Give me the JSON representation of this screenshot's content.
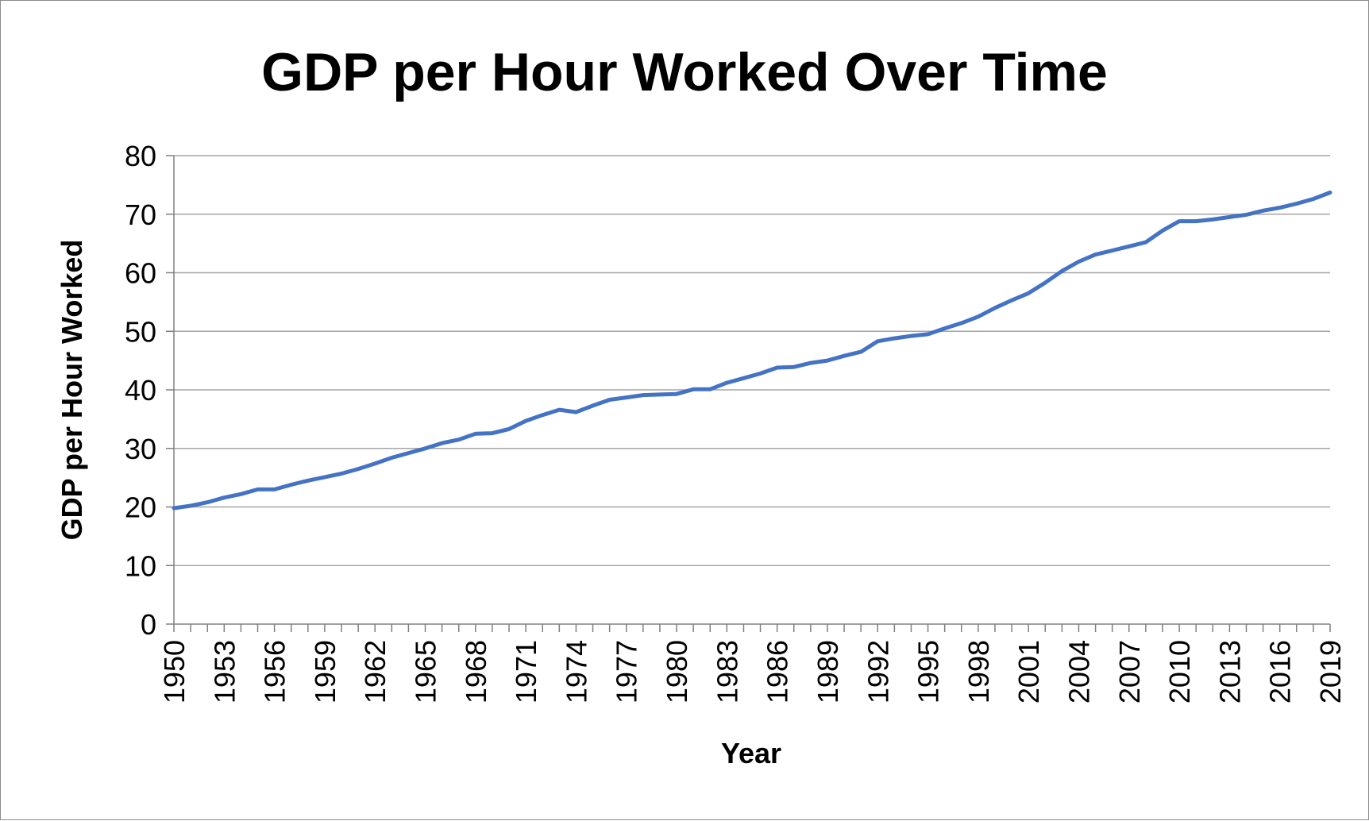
{
  "chart_data": {
    "type": "line",
    "title": "GDP per Hour Worked Over Time",
    "xlabel": "Year",
    "ylabel": "GDP per Hour Worked",
    "ylim": [
      0,
      80
    ],
    "yticks": [
      "0",
      "10",
      "20",
      "30",
      "40",
      "50",
      "60",
      "70",
      "80"
    ],
    "xticks": [
      "1950",
      "1953",
      "1956",
      "1959",
      "1962",
      "1965",
      "1968",
      "1971",
      "1974",
      "1977",
      "1980",
      "1983",
      "1986",
      "1989",
      "1992",
      "1995",
      "1998",
      "2001",
      "2004",
      "2007",
      "2010",
      "2013",
      "2016",
      "2019"
    ],
    "grid": true,
    "legend": "none",
    "colors": {
      "line": "#4472c4",
      "grid": "#a6a6a6",
      "axis": "#808080",
      "text": "#000000"
    },
    "series": [
      {
        "x": [
          1950,
          1951,
          1952,
          1953,
          1954,
          1955,
          1956,
          1957,
          1958,
          1959,
          1960,
          1961,
          1962,
          1963,
          1964,
          1965,
          1966,
          1967,
          1968,
          1969,
          1970,
          1971,
          1972,
          1973,
          1974,
          1975,
          1976,
          1977,
          1978,
          1979,
          1980,
          1981,
          1982,
          1983,
          1984,
          1985,
          1986,
          1987,
          1988,
          1989,
          1990,
          1991,
          1992,
          1993,
          1994,
          1995,
          1996,
          1997,
          1998,
          1999,
          2000,
          2001,
          2002,
          2003,
          2004,
          2005,
          2006,
          2007,
          2008,
          2009,
          2010,
          2011,
          2012,
          2013,
          2014,
          2015,
          2016,
          2017,
          2018,
          2019
        ],
        "values": [
          19.8,
          20.2,
          20.8,
          21.6,
          22.2,
          23.0,
          23.0,
          23.8,
          24.5,
          25.1,
          25.7,
          26.5,
          27.4,
          28.4,
          29.2,
          30.0,
          30.9,
          31.5,
          32.5,
          32.6,
          33.3,
          34.7,
          35.7,
          36.6,
          36.2,
          37.3,
          38.3,
          38.7,
          39.1,
          39.2,
          39.3,
          40.1,
          40.1,
          41.2,
          42.0,
          42.8,
          43.8,
          43.9,
          44.6,
          45.0,
          45.8,
          46.5,
          48.3,
          48.8,
          49.2,
          49.5,
          50.5,
          51.4,
          52.5,
          54.0,
          55.3,
          56.5,
          58.3,
          60.3,
          61.9,
          63.1,
          63.8,
          64.5,
          65.2,
          67.2,
          68.8,
          68.8,
          69.1,
          69.5,
          69.9,
          70.6,
          71.1,
          71.8,
          72.6,
          73.7
        ]
      }
    ]
  }
}
